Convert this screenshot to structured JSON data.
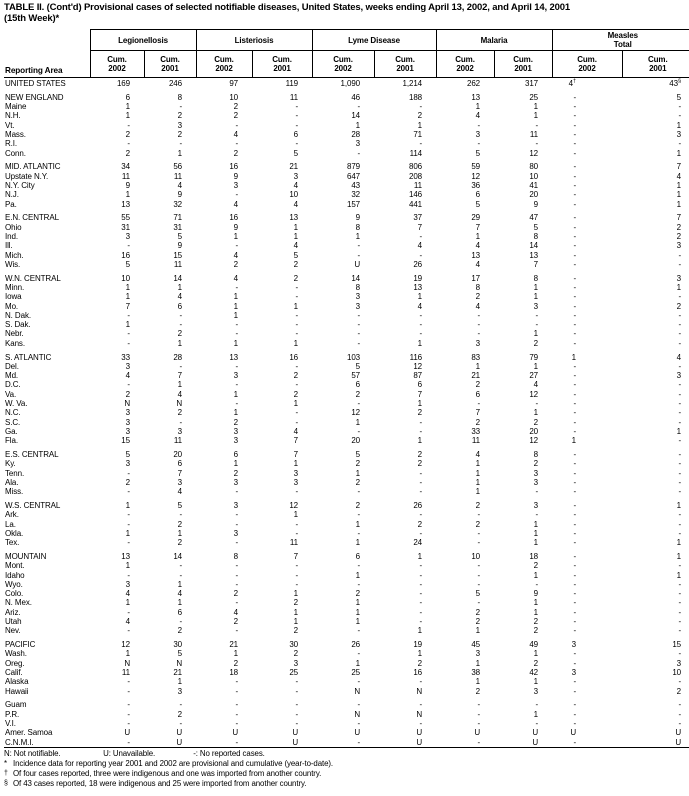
{
  "title": {
    "line1": "TABLE II. (Cont'd) Provisional cases of selected notifiable diseases, United States, weeks ending April 13, 2002, and April 14, 2001",
    "line2": "(15th Week)*"
  },
  "table": {
    "stub_header": "Reporting Area",
    "groups": [
      {
        "label": "Legionellosis"
      },
      {
        "label": "Listeriosis"
      },
      {
        "label": "Lyme Disease"
      },
      {
        "label": "Malaria"
      },
      {
        "label": "Measles\nTotal"
      }
    ],
    "col_headers": [
      "Cum.\n2002",
      "Cum.\n2001",
      "Cum.\n2002",
      "Cum.\n2001",
      "Cum.\n2002",
      "Cum.\n2001",
      "Cum.\n2002",
      "Cum.\n2001",
      "Cum.\n2002",
      "Cum.\n2001"
    ],
    "rows": [
      {
        "area": "UNITED STATES",
        "gap": false,
        "v": [
          "169",
          "246",
          "97",
          "119",
          "1,090",
          "1,214",
          "262",
          "317",
          "4†",
          "43§"
        ]
      },
      {
        "area": "NEW ENGLAND",
        "gap": true,
        "v": [
          "6",
          "8",
          "10",
          "11",
          "46",
          "188",
          "13",
          "25",
          "-",
          "5"
        ]
      },
      {
        "area": "Maine",
        "gap": false,
        "v": [
          "1",
          "-",
          "2",
          "-",
          "-",
          "-",
          "1",
          "1",
          "-",
          "-"
        ]
      },
      {
        "area": "N.H.",
        "gap": false,
        "v": [
          "1",
          "2",
          "2",
          "-",
          "14",
          "2",
          "4",
          "1",
          "-",
          "-"
        ]
      },
      {
        "area": "Vt.",
        "gap": false,
        "v": [
          "-",
          "3",
          "-",
          "-",
          "1",
          "1",
          "-",
          "-",
          "-",
          "1"
        ]
      },
      {
        "area": "Mass.",
        "gap": false,
        "v": [
          "2",
          "2",
          "4",
          "6",
          "28",
          "71",
          "3",
          "11",
          "-",
          "3"
        ]
      },
      {
        "area": "R.I.",
        "gap": false,
        "v": [
          "-",
          "-",
          "-",
          "-",
          "3",
          "-",
          "-",
          "-",
          "-",
          "-"
        ]
      },
      {
        "area": "Conn.",
        "gap": false,
        "v": [
          "2",
          "1",
          "2",
          "5",
          "-",
          "114",
          "5",
          "12",
          "-",
          "1"
        ]
      },
      {
        "area": "MID. ATLANTIC",
        "gap": true,
        "v": [
          "34",
          "56",
          "16",
          "21",
          "879",
          "806",
          "59",
          "80",
          "-",
          "7"
        ]
      },
      {
        "area": "Upstate N.Y.",
        "gap": false,
        "v": [
          "11",
          "11",
          "9",
          "3",
          "647",
          "208",
          "12",
          "10",
          "-",
          "4"
        ]
      },
      {
        "area": "N.Y. City",
        "gap": false,
        "v": [
          "9",
          "4",
          "3",
          "4",
          "43",
          "11",
          "36",
          "41",
          "-",
          "1"
        ]
      },
      {
        "area": "N.J.",
        "gap": false,
        "v": [
          "1",
          "9",
          "-",
          "10",
          "32",
          "146",
          "6",
          "20",
          "-",
          "1"
        ]
      },
      {
        "area": "Pa.",
        "gap": false,
        "v": [
          "13",
          "32",
          "4",
          "4",
          "157",
          "441",
          "5",
          "9",
          "-",
          "1"
        ]
      },
      {
        "area": "E.N. CENTRAL",
        "gap": true,
        "v": [
          "55",
          "71",
          "16",
          "13",
          "9",
          "37",
          "29",
          "47",
          "-",
          "7"
        ]
      },
      {
        "area": "Ohio",
        "gap": false,
        "v": [
          "31",
          "31",
          "9",
          "1",
          "8",
          "7",
          "7",
          "5",
          "-",
          "2"
        ]
      },
      {
        "area": "Ind.",
        "gap": false,
        "v": [
          "3",
          "5",
          "1",
          "1",
          "1",
          "-",
          "1",
          "8",
          "-",
          "2"
        ]
      },
      {
        "area": "Ill.",
        "gap": false,
        "v": [
          "-",
          "9",
          "-",
          "4",
          "-",
          "4",
          "4",
          "14",
          "-",
          "3"
        ]
      },
      {
        "area": "Mich.",
        "gap": false,
        "v": [
          "16",
          "15",
          "4",
          "5",
          "-",
          "-",
          "13",
          "13",
          "-",
          "-"
        ]
      },
      {
        "area": "Wis.",
        "gap": false,
        "v": [
          "5",
          "11",
          "2",
          "2",
          "U",
          "26",
          "4",
          "7",
          "-",
          "-"
        ]
      },
      {
        "area": "W.N. CENTRAL",
        "gap": true,
        "v": [
          "10",
          "14",
          "4",
          "2",
          "14",
          "19",
          "17",
          "8",
          "-",
          "3"
        ]
      },
      {
        "area": "Minn.",
        "gap": false,
        "v": [
          "1",
          "1",
          "-",
          "-",
          "8",
          "13",
          "8",
          "1",
          "-",
          "1"
        ]
      },
      {
        "area": "Iowa",
        "gap": false,
        "v": [
          "1",
          "4",
          "1",
          "-",
          "3",
          "1",
          "2",
          "1",
          "-",
          "-"
        ]
      },
      {
        "area": "Mo.",
        "gap": false,
        "v": [
          "7",
          "6",
          "1",
          "1",
          "3",
          "4",
          "4",
          "3",
          "-",
          "2"
        ]
      },
      {
        "area": "N. Dak.",
        "gap": false,
        "v": [
          "-",
          "-",
          "1",
          "-",
          "-",
          "-",
          "-",
          "-",
          "-",
          "-"
        ]
      },
      {
        "area": "S. Dak.",
        "gap": false,
        "v": [
          "1",
          "-",
          "-",
          "-",
          "-",
          "-",
          "-",
          "-",
          "-",
          "-"
        ]
      },
      {
        "area": "Nebr.",
        "gap": false,
        "v": [
          "-",
          "2",
          "-",
          "-",
          "-",
          "-",
          "-",
          "1",
          "-",
          "-"
        ]
      },
      {
        "area": "Kans.",
        "gap": false,
        "v": [
          "-",
          "1",
          "1",
          "1",
          "-",
          "1",
          "3",
          "2",
          "-",
          "-"
        ]
      },
      {
        "area": "S. ATLANTIC",
        "gap": true,
        "v": [
          "33",
          "28",
          "13",
          "16",
          "103",
          "116",
          "83",
          "79",
          "1",
          "4"
        ]
      },
      {
        "area": "Del.",
        "gap": false,
        "v": [
          "3",
          "-",
          "-",
          "-",
          "5",
          "12",
          "1",
          "1",
          "-",
          "-"
        ]
      },
      {
        "area": "Md.",
        "gap": false,
        "v": [
          "4",
          "7",
          "3",
          "2",
          "57",
          "87",
          "21",
          "27",
          "-",
          "3"
        ]
      },
      {
        "area": "D.C.",
        "gap": false,
        "v": [
          "-",
          "1",
          "-",
          "-",
          "6",
          "6",
          "2",
          "4",
          "-",
          "-"
        ]
      },
      {
        "area": "Va.",
        "gap": false,
        "v": [
          "2",
          "4",
          "1",
          "2",
          "2",
          "7",
          "6",
          "12",
          "-",
          "-"
        ]
      },
      {
        "area": "W. Va.",
        "gap": false,
        "v": [
          "N",
          "N",
          "-",
          "1",
          "-",
          "1",
          "-",
          "-",
          "-",
          "-"
        ]
      },
      {
        "area": "N.C.",
        "gap": false,
        "v": [
          "3",
          "2",
          "1",
          "-",
          "12",
          "2",
          "7",
          "1",
          "-",
          "-"
        ]
      },
      {
        "area": "S.C.",
        "gap": false,
        "v": [
          "3",
          "-",
          "2",
          "-",
          "1",
          "-",
          "2",
          "2",
          "-",
          "-"
        ]
      },
      {
        "area": "Ga.",
        "gap": false,
        "v": [
          "3",
          "3",
          "3",
          "4",
          "-",
          "-",
          "33",
          "20",
          "-",
          "1"
        ]
      },
      {
        "area": "Fla.",
        "gap": false,
        "v": [
          "15",
          "11",
          "3",
          "7",
          "20",
          "1",
          "11",
          "12",
          "1",
          "-"
        ]
      },
      {
        "area": "E.S. CENTRAL",
        "gap": true,
        "v": [
          "5",
          "20",
          "6",
          "7",
          "5",
          "2",
          "4",
          "8",
          "-",
          "-"
        ]
      },
      {
        "area": "Ky.",
        "gap": false,
        "v": [
          "3",
          "6",
          "1",
          "1",
          "2",
          "2",
          "1",
          "2",
          "-",
          "-"
        ]
      },
      {
        "area": "Tenn.",
        "gap": false,
        "v": [
          "-",
          "7",
          "2",
          "3",
          "1",
          "-",
          "1",
          "3",
          "-",
          "-"
        ]
      },
      {
        "area": "Ala.",
        "gap": false,
        "v": [
          "2",
          "3",
          "3",
          "3",
          "2",
          "-",
          "1",
          "3",
          "-",
          "-"
        ]
      },
      {
        "area": "Miss.",
        "gap": false,
        "v": [
          "-",
          "4",
          "-",
          "-",
          "-",
          "-",
          "1",
          "-",
          "-",
          "-"
        ]
      },
      {
        "area": "W.S. CENTRAL",
        "gap": true,
        "v": [
          "1",
          "5",
          "3",
          "12",
          "2",
          "26",
          "2",
          "3",
          "-",
          "1"
        ]
      },
      {
        "area": "Ark.",
        "gap": false,
        "v": [
          "-",
          "-",
          "-",
          "1",
          "-",
          "-",
          "-",
          "-",
          "-",
          "-"
        ]
      },
      {
        "area": "La.",
        "gap": false,
        "v": [
          "-",
          "2",
          "-",
          "-",
          "1",
          "2",
          "2",
          "1",
          "-",
          "-"
        ]
      },
      {
        "area": "Okla.",
        "gap": false,
        "v": [
          "1",
          "1",
          "3",
          "-",
          "-",
          "-",
          "-",
          "1",
          "-",
          "-"
        ]
      },
      {
        "area": "Tex.",
        "gap": false,
        "v": [
          "-",
          "2",
          "-",
          "11",
          "1",
          "24",
          "-",
          "1",
          "-",
          "1"
        ]
      },
      {
        "area": "MOUNTAIN",
        "gap": true,
        "v": [
          "13",
          "14",
          "8",
          "7",
          "6",
          "1",
          "10",
          "18",
          "-",
          "1"
        ]
      },
      {
        "area": "Mont.",
        "gap": false,
        "v": [
          "1",
          "-",
          "-",
          "-",
          "-",
          "-",
          "-",
          "2",
          "-",
          "-"
        ]
      },
      {
        "area": "Idaho",
        "gap": false,
        "v": [
          "-",
          "-",
          "-",
          "-",
          "1",
          "-",
          "-",
          "1",
          "-",
          "1"
        ]
      },
      {
        "area": "Wyo.",
        "gap": false,
        "v": [
          "3",
          "1",
          "-",
          "-",
          "-",
          "-",
          "-",
          "-",
          "-",
          "-"
        ]
      },
      {
        "area": "Colo.",
        "gap": false,
        "v": [
          "4",
          "4",
          "2",
          "1",
          "2",
          "-",
          "5",
          "9",
          "-",
          "-"
        ]
      },
      {
        "area": "N. Mex.",
        "gap": false,
        "v": [
          "1",
          "1",
          "-",
          "2",
          "1",
          "-",
          "-",
          "1",
          "-",
          "-"
        ]
      },
      {
        "area": "Ariz.",
        "gap": false,
        "v": [
          "-",
          "6",
          "4",
          "1",
          "1",
          "-",
          "2",
          "1",
          "-",
          "-"
        ]
      },
      {
        "area": "Utah",
        "gap": false,
        "v": [
          "4",
          "-",
          "2",
          "1",
          "1",
          "-",
          "2",
          "2",
          "-",
          "-"
        ]
      },
      {
        "area": "Nev.",
        "gap": false,
        "v": [
          "-",
          "2",
          "-",
          "2",
          "-",
          "1",
          "1",
          "2",
          "-",
          "-"
        ]
      },
      {
        "area": "PACIFIC",
        "gap": true,
        "v": [
          "12",
          "30",
          "21",
          "30",
          "26",
          "19",
          "45",
          "49",
          "3",
          "15"
        ]
      },
      {
        "area": "Wash.",
        "gap": false,
        "v": [
          "1",
          "5",
          "1",
          "2",
          "-",
          "1",
          "3",
          "1",
          "-",
          "-"
        ]
      },
      {
        "area": "Oreg.",
        "gap": false,
        "v": [
          "N",
          "N",
          "2",
          "3",
          "1",
          "2",
          "1",
          "2",
          "-",
          "3"
        ]
      },
      {
        "area": "Calif.",
        "gap": false,
        "v": [
          "11",
          "21",
          "18",
          "25",
          "25",
          "16",
          "38",
          "42",
          "3",
          "10"
        ]
      },
      {
        "area": "Alaska",
        "gap": false,
        "v": [
          "-",
          "1",
          "-",
          "-",
          "-",
          "-",
          "1",
          "1",
          "-",
          "-"
        ]
      },
      {
        "area": "Hawaii",
        "gap": false,
        "v": [
          "-",
          "3",
          "-",
          "-",
          "N",
          "N",
          "2",
          "3",
          "-",
          "2"
        ]
      },
      {
        "area": "Guam",
        "gap": true,
        "v": [
          "-",
          "-",
          "-",
          "-",
          "-",
          "-",
          "-",
          "-",
          "-",
          "-"
        ]
      },
      {
        "area": "P.R.",
        "gap": false,
        "v": [
          "-",
          "2",
          "-",
          "-",
          "N",
          "N",
          "-",
          "1",
          "-",
          "-"
        ]
      },
      {
        "area": "V.I.",
        "gap": false,
        "v": [
          "-",
          "-",
          "-",
          "-",
          "-",
          "-",
          "-",
          "-",
          "-",
          "-"
        ]
      },
      {
        "area": "Amer. Samoa",
        "gap": false,
        "v": [
          "U",
          "U",
          "U",
          "U",
          "U",
          "U",
          "U",
          "U",
          "U",
          "U"
        ]
      },
      {
        "area": "C.N.M.I.",
        "gap": false,
        "v": [
          "-",
          "U",
          "-",
          "U",
          "-",
          "U",
          "-",
          "U",
          "-",
          "U"
        ]
      }
    ]
  },
  "footnotes": {
    "legend": [
      "N: Not notifiable.",
      "U: Unavailable.",
      "-: No reported cases."
    ],
    "notes": [
      {
        "marker": "*",
        "text": "Incidence data for reporting year 2001 and 2002 are provisional and cumulative (year-to-date)."
      },
      {
        "marker": "†",
        "text": "Of four cases reported, three were indigenous and one was imported from another country."
      },
      {
        "marker": "§",
        "text": "Of 43 cases reported, 18 were indigenous and 25 were imported from another country."
      }
    ]
  }
}
